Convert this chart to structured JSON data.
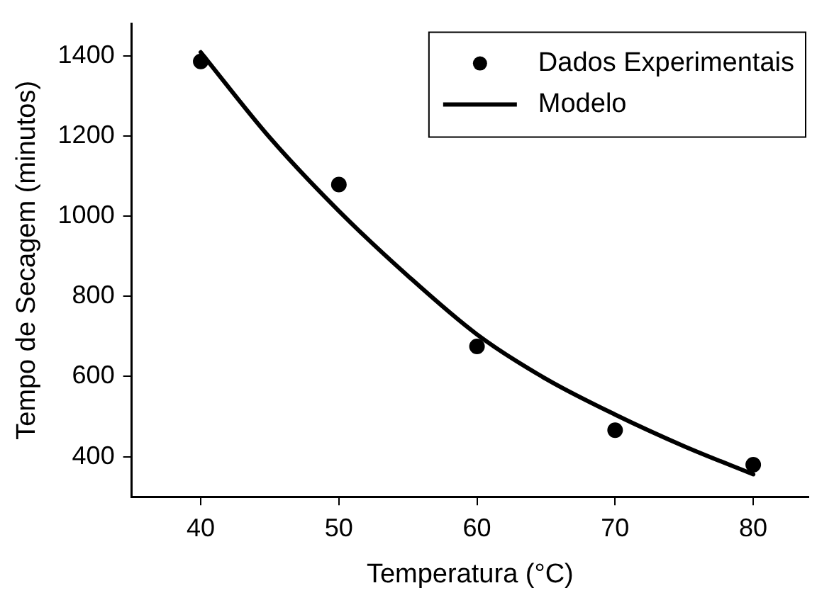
{
  "chart_data": {
    "type": "scatter",
    "xlabel": "Temperatura (°C)",
    "ylabel": "Tempo de Secagem (minutos)",
    "xlim": [
      35,
      84
    ],
    "xticks": [
      40,
      50,
      60,
      70,
      80
    ],
    "ylim": [
      300,
      1480
    ],
    "yticks": [
      400,
      600,
      800,
      1000,
      1200,
      1400
    ],
    "grid": false,
    "legend": "top right",
    "series": [
      {
        "name": "Dados Experimentais",
        "type": "scatter",
        "color": "#000000",
        "marker": "circle",
        "x": [
          40,
          50,
          60,
          70,
          80
        ],
        "values": [
          1386,
          1079,
          675,
          466,
          380
        ]
      },
      {
        "name": "Modelo",
        "type": "line",
        "color": "#000000",
        "marker": "none",
        "line_style": "solid",
        "x": [
          40,
          45,
          50,
          55,
          60,
          65,
          70,
          75,
          80
        ],
        "values": [
          1409,
          1196,
          1013,
          851,
          705,
          594,
          505,
          426,
          356
        ]
      }
    ]
  }
}
